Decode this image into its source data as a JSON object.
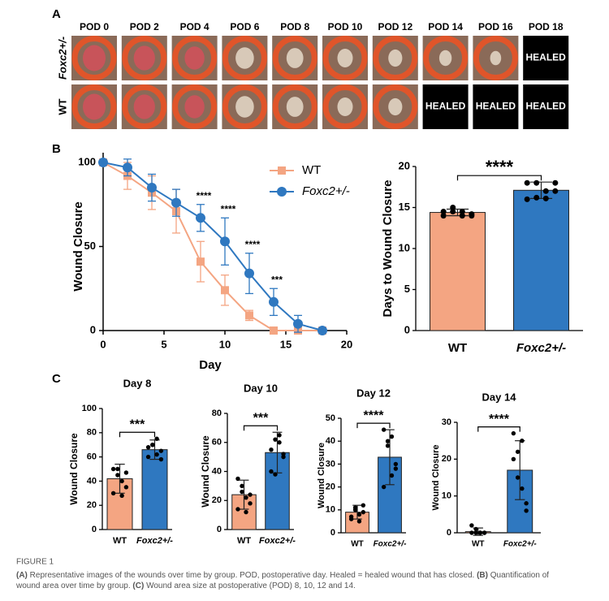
{
  "panel_labels": [
    "A",
    "B",
    "C"
  ],
  "panel_a": {
    "columns": [
      "POD 0",
      "POD 2",
      "POD 4",
      "POD 6",
      "POD 8",
      "POD 10",
      "POD 12",
      "POD 14",
      "POD 16",
      "POD 18"
    ],
    "rows": [
      {
        "label": "Foxc2+/-",
        "cells": [
          null,
          null,
          null,
          null,
          null,
          null,
          null,
          null,
          null,
          "HEALED"
        ]
      },
      {
        "label": "WT",
        "cells": [
          null,
          null,
          null,
          null,
          null,
          null,
          null,
          "HEALED",
          "HEALED",
          "HEALED"
        ]
      }
    ]
  },
  "chart_data": [
    {
      "type": "line",
      "xlabel": "Day",
      "ylabel": "Wound Closure",
      "x": [
        0,
        2,
        4,
        6,
        8,
        10,
        12,
        14,
        16,
        18
      ],
      "xlim": [
        0,
        20
      ],
      "xticks": [
        0,
        5,
        10,
        15,
        20
      ],
      "ylim": [
        0,
        100
      ],
      "yticks": [
        0,
        50,
        100
      ],
      "series": [
        {
          "name": "WT",
          "color": "#f4a582",
          "marker": "square",
          "values": [
            100,
            92,
            82,
            71,
            41,
            24,
            9,
            0,
            0,
            0
          ],
          "errors": [
            0,
            8,
            10,
            13,
            12,
            9,
            3,
            0,
            0,
            0
          ]
        },
        {
          "name": "Foxc2+/-",
          "color": "#2f78c0",
          "marker": "circle",
          "values": [
            100,
            97,
            85,
            76,
            67,
            53,
            34,
            17,
            4,
            0
          ],
          "errors": [
            0,
            5,
            8,
            8,
            8,
            14,
            12,
            8,
            5,
            0
          ]
        }
      ],
      "annotations": [
        {
          "x": 8,
          "text": "****"
        },
        {
          "x": 10,
          "text": "****"
        },
        {
          "x": 12,
          "text": "****"
        },
        {
          "x": 14,
          "text": "***"
        }
      ]
    },
    {
      "type": "bar",
      "ylabel": "Days to Wound Closure",
      "categories": [
        "WT",
        "Foxc2+/-"
      ],
      "colors": [
        "#f4a582",
        "#2f78c0"
      ],
      "values": [
        14.4,
        17.1
      ],
      "errors": [
        0.4,
        1.0
      ],
      "points": [
        [
          14,
          14.5,
          14.5,
          14,
          14.5,
          15,
          14,
          14.2
        ],
        [
          16,
          16.2,
          17,
          18,
          18,
          18,
          16.1,
          17
        ]
      ],
      "ylim": [
        0,
        20
      ],
      "yticks": [
        0,
        5,
        10,
        15,
        20
      ],
      "significance": "****"
    },
    {
      "type": "bar",
      "title": "Day 8",
      "ylabel": "Wound Closure",
      "categories": [
        "WT",
        "Foxc2+/-"
      ],
      "colors": [
        "#f4a582",
        "#2f78c0"
      ],
      "values": [
        42,
        66
      ],
      "errors": [
        12,
        8
      ],
      "points": [
        [
          30,
          50,
          40,
          35,
          50,
          45,
          28,
          47
        ],
        [
          60,
          70,
          75,
          65,
          68,
          70,
          62,
          58
        ]
      ],
      "ylim": [
        0,
        100
      ],
      "yticks": [
        0,
        20,
        40,
        60,
        80,
        100
      ],
      "significance": "***"
    },
    {
      "type": "bar",
      "title": "Day 10",
      "ylabel": "Wound Closure",
      "categories": [
        "WT",
        "Foxc2+/-"
      ],
      "colors": [
        "#f4a582",
        "#2f78c0"
      ],
      "values": [
        24,
        53
      ],
      "errors": [
        10,
        14
      ],
      "points": [
        [
          14,
          30,
          22,
          18,
          35,
          26,
          12,
          24
        ],
        [
          40,
          62,
          65,
          50,
          55,
          38,
          60,
          52
        ]
      ],
      "ylim": [
        0,
        80
      ],
      "yticks": [
        0,
        20,
        40,
        60,
        80
      ],
      "significance": "***"
    },
    {
      "type": "bar",
      "title": "Day 12",
      "ylabel": "Wound Closure",
      "categories": [
        "WT",
        "Foxc2+/-"
      ],
      "colors": [
        "#f4a582",
        "#2f78c0"
      ],
      "values": [
        9,
        33
      ],
      "errors": [
        3,
        12
      ],
      "points": [
        [
          6,
          11,
          8,
          12,
          7,
          10,
          5,
          9
        ],
        [
          45,
          40,
          25,
          30,
          20,
          38,
          42,
          28
        ]
      ],
      "ylim": [
        0,
        50
      ],
      "yticks": [
        0,
        10,
        20,
        30,
        40,
        50
      ],
      "significance": "****"
    },
    {
      "type": "bar",
      "title": "Day 14",
      "ylabel": "Wound Closure",
      "categories": [
        "WT",
        "Foxc2+/-"
      ],
      "colors": [
        "#f4a582",
        "#2f78c0"
      ],
      "values": [
        0.3,
        17
      ],
      "errors": [
        1,
        8
      ],
      "points": [
        [
          0,
          1,
          0,
          0,
          2,
          0,
          0,
          0
        ],
        [
          27,
          22,
          12,
          8,
          20,
          15,
          25,
          6
        ]
      ],
      "ylim": [
        0,
        30
      ],
      "yticks": [
        0,
        10,
        20,
        30
      ],
      "significance": "****"
    }
  ],
  "caption": {
    "label": "FIGURE 1",
    "lines": [
      [
        {
          "bold": "(A)"
        },
        {
          "text": " Representative images of the wounds over time by group. POD, postoperative day. Healed = healed wound that has closed. "
        },
        {
          "bold": "(B)"
        },
        {
          "text": " Quantification of"
        }
      ],
      [
        {
          "text": "wound area over time by group. "
        },
        {
          "bold": "(C)"
        },
        {
          "text": " Wound area size at postoperative (POD) 8, 10, 12 and 14."
        }
      ]
    ]
  }
}
